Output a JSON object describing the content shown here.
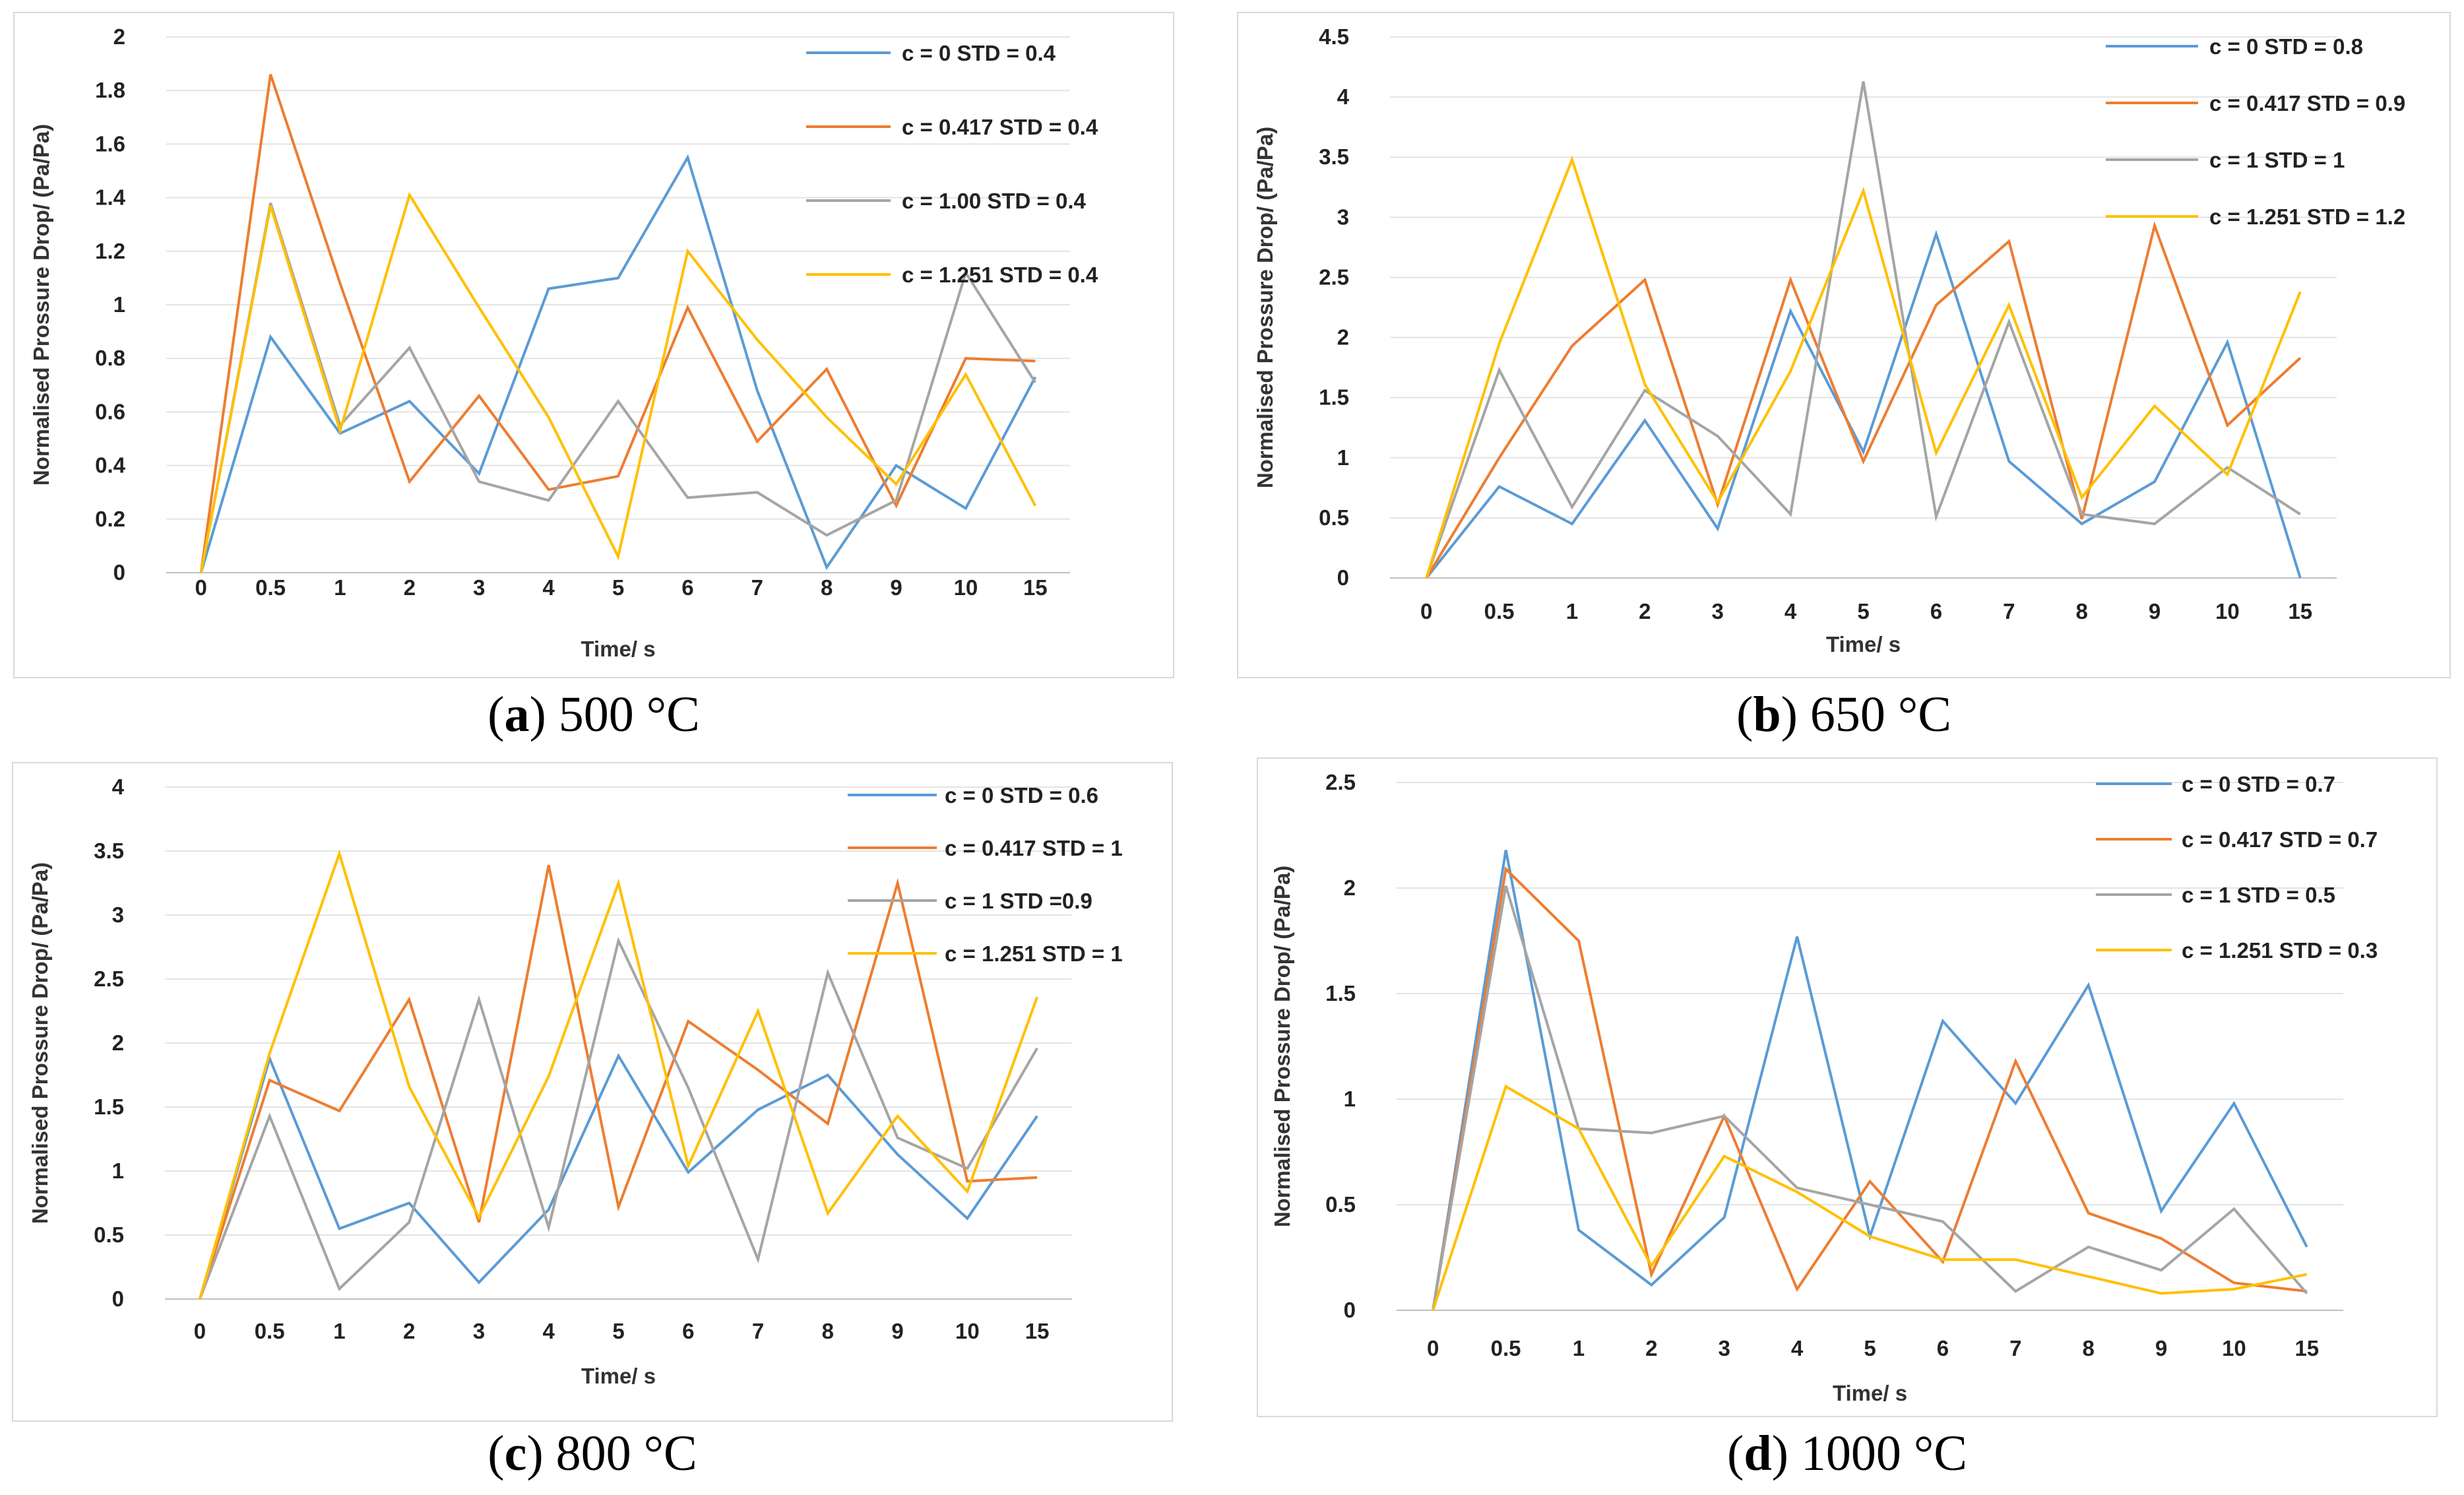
{
  "chart_data": [
    {
      "type": "line",
      "caption_letter": "a",
      "caption_text": " 500 °C",
      "xlabel": "Time/ s",
      "ylabel": "Normalised Prossure Drop/ (Pa/Pa)",
      "categories": [
        "0",
        "0.5",
        "1",
        "2",
        "3",
        "4",
        "5",
        "6",
        "7",
        "8",
        "9",
        "10",
        "15"
      ],
      "ylim": [
        0,
        2
      ],
      "yticks": [
        "0",
        "0.2",
        "0.4",
        "0.6",
        "0.8",
        "1",
        "1.2",
        "1.4",
        "1.6",
        "1.8",
        "2"
      ],
      "series": [
        {
          "name": "c = 0   STD = 0.4",
          "color": "#5b9bd5",
          "values": [
            0,
            0.88,
            0.52,
            0.64,
            0.37,
            1.06,
            1.1,
            1.55,
            0.68,
            0.02,
            0.4,
            0.24,
            0.73
          ]
        },
        {
          "name": "c = 0.417   STD = 0.4",
          "color": "#ed7d31",
          "values": [
            0,
            1.86,
            1.08,
            0.34,
            0.66,
            0.31,
            0.36,
            0.99,
            0.49,
            0.76,
            0.25,
            0.8,
            0.79
          ]
        },
        {
          "name": "c = 1.00   STD = 0.4",
          "color": "#a5a5a5",
          "values": [
            0,
            1.38,
            0.55,
            0.84,
            0.34,
            0.27,
            0.64,
            0.28,
            0.3,
            0.14,
            0.27,
            1.12,
            0.71
          ]
        },
        {
          "name": "c = 1.251   STD = 0.4",
          "color": "#ffc000",
          "values": [
            0,
            1.37,
            0.53,
            1.41,
            0.99,
            0.58,
            0.06,
            1.2,
            0.87,
            0.58,
            0.33,
            0.74,
            0.25
          ]
        }
      ]
    },
    {
      "type": "line",
      "caption_letter": "b",
      "caption_text": " 650 °C",
      "xlabel": "Time/ s",
      "ylabel": "Normalised Prossure Drop/ (Pa/Pa)",
      "categories": [
        "0",
        "0.5",
        "1",
        "2",
        "3",
        "4",
        "5",
        "6",
        "7",
        "8",
        "9",
        "10",
        "15"
      ],
      "ylim": [
        0,
        4.5
      ],
      "yticks": [
        "0",
        "0.5",
        "1",
        "1.5",
        "2",
        "2.5",
        "3",
        "3.5",
        "4",
        "4.5"
      ],
      "series": [
        {
          "name": "c = 0   STD = 0.8",
          "color": "#5b9bd5",
          "values": [
            0,
            0.76,
            0.45,
            1.31,
            0.41,
            2.22,
            1.05,
            2.86,
            0.97,
            0.45,
            0.8,
            1.96,
            0
          ]
        },
        {
          "name": "c = 0.417   STD = 0.9",
          "color": "#ed7d31",
          "values": [
            0,
            1.0,
            1.93,
            2.48,
            0.61,
            2.48,
            0.97,
            2.27,
            2.8,
            0.49,
            2.93,
            1.27,
            1.83
          ]
        },
        {
          "name": "c = 1   STD = 1",
          "color": "#a5a5a5",
          "values": [
            0,
            1.73,
            0.59,
            1.56,
            1.18,
            0.53,
            4.13,
            0.51,
            2.13,
            0.53,
            0.45,
            0.92,
            0.53
          ]
        },
        {
          "name": "c = 1.251   STD = 1.2",
          "color": "#ffc000",
          "values": [
            0,
            1.95,
            3.48,
            1.61,
            0.63,
            1.72,
            3.22,
            1.04,
            2.27,
            0.67,
            1.43,
            0.86,
            2.38
          ]
        }
      ]
    },
    {
      "type": "line",
      "caption_letter": "c",
      "caption_text": " 800 °C",
      "xlabel": "Time/ s",
      "ylabel": "Normalised Prossure Drop/ (Pa/Pa)",
      "categories": [
        "0",
        "0.5",
        "1",
        "2",
        "3",
        "4",
        "5",
        "6",
        "7",
        "8",
        "9",
        "10",
        "15"
      ],
      "ylim": [
        0,
        4
      ],
      "yticks": [
        "0",
        "0.5",
        "1",
        "1.5",
        "2",
        "2.5",
        "3",
        "3.5",
        "4"
      ],
      "series": [
        {
          "name": "c = 0   STD = 0.6",
          "color": "#5b9bd5",
          "values": [
            0,
            1.88,
            0.55,
            0.75,
            0.13,
            0.7,
            1.9,
            0.99,
            1.48,
            1.75,
            1.13,
            0.63,
            1.43
          ]
        },
        {
          "name": "c = 0.417   STD = 1",
          "color": "#ed7d31",
          "values": [
            0,
            1.71,
            1.47,
            2.34,
            0.6,
            3.39,
            0.72,
            2.17,
            1.79,
            1.37,
            3.25,
            0.92,
            0.95
          ]
        },
        {
          "name": "c = 1   STD =0.9",
          "color": "#a5a5a5",
          "values": [
            0,
            1.43,
            0.08,
            0.6,
            2.34,
            0.56,
            2.8,
            1.65,
            0.31,
            2.55,
            1.26,
            1.02,
            1.96
          ]
        },
        {
          "name": "c = 1.251   STD = 1",
          "color": "#ffc000",
          "values": [
            0,
            1.92,
            3.48,
            1.66,
            0.64,
            1.74,
            3.25,
            1.04,
            2.25,
            0.67,
            1.43,
            0.84,
            2.36
          ]
        }
      ]
    },
    {
      "type": "line",
      "caption_letter": "d",
      "caption_text": " 1000 °C",
      "xlabel": "Time/ s",
      "ylabel": "Normalised Prossure Drop/ (Pa/Pa)",
      "categories": [
        "0",
        "0.5",
        "1",
        "2",
        "3",
        "4",
        "5",
        "6",
        "7",
        "8",
        "9",
        "10",
        "15"
      ],
      "ylim": [
        0,
        2.5
      ],
      "yticks": [
        "0",
        "0.5",
        "1",
        "1.5",
        "2",
        "2.5"
      ],
      "series": [
        {
          "name": "c = 0   STD = 0.7",
          "color": "#5b9bd5",
          "values": [
            0,
            2.18,
            0.38,
            0.12,
            0.44,
            1.77,
            0.35,
            1.37,
            0.98,
            1.54,
            0.47,
            0.98,
            0.3
          ]
        },
        {
          "name": "c = 0.417   STD = 0.7",
          "color": "#ed7d31",
          "values": [
            0,
            2.09,
            1.75,
            0.17,
            0.92,
            0.1,
            0.61,
            0.23,
            1.18,
            0.46,
            0.34,
            0.13,
            0.09
          ]
        },
        {
          "name": "c = 1   STD = 0.5",
          "color": "#a5a5a5",
          "values": [
            0,
            2.01,
            0.86,
            0.84,
            0.92,
            0.58,
            0.5,
            0.42,
            0.09,
            0.3,
            0.19,
            0.48,
            0.08
          ]
        },
        {
          "name": "c = 1.251   STD = 0.3",
          "color": "#ffc000",
          "values": [
            0,
            1.06,
            0.86,
            0.21,
            0.73,
            0.56,
            0.35,
            0.24,
            0.24,
            0.16,
            0.08,
            0.1,
            0.17
          ]
        }
      ]
    }
  ]
}
